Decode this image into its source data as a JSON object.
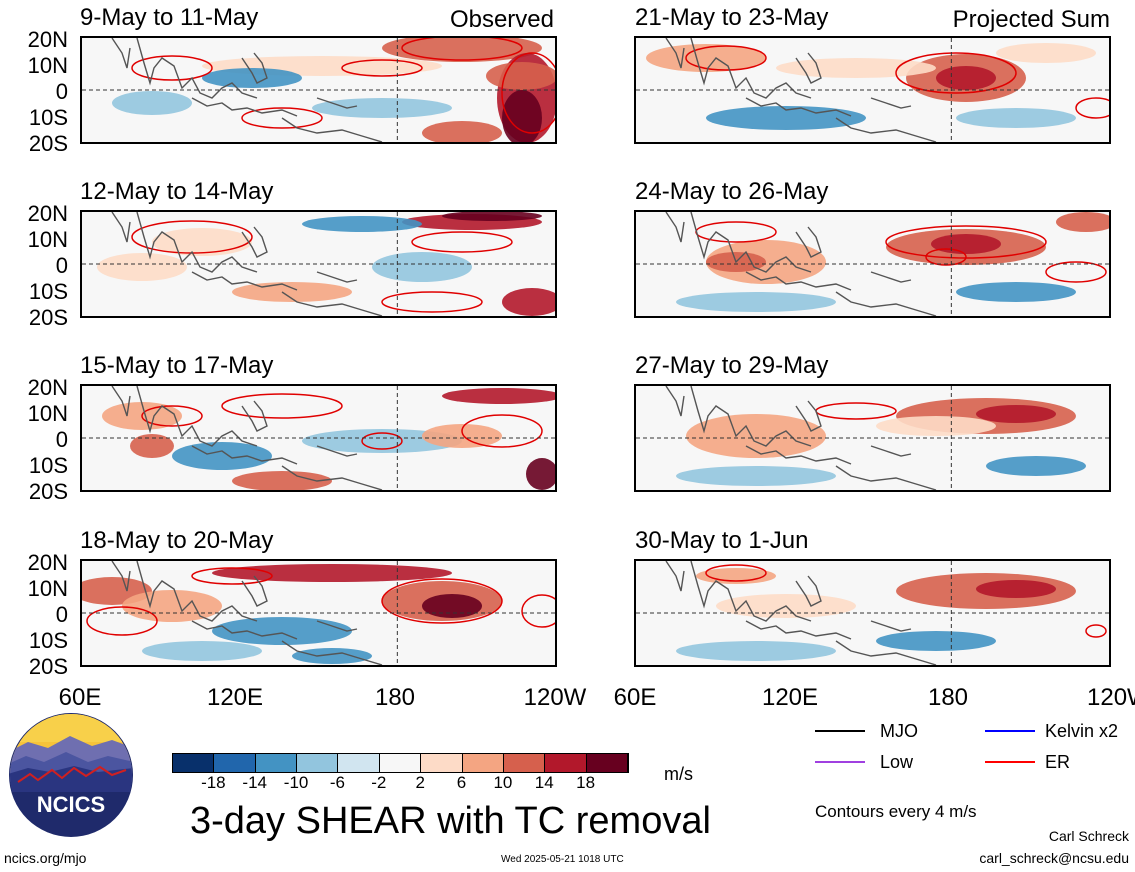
{
  "panel_tags": {
    "observed": "Observed",
    "projected": "Projected Sum"
  },
  "panels": [
    {
      "title": "9-May to 11-May"
    },
    {
      "title": "12-May to 14-May"
    },
    {
      "title": "15-May to 17-May"
    },
    {
      "title": "18-May to 20-May"
    },
    {
      "title": "21-May to 23-May"
    },
    {
      "title": "24-May to 26-May"
    },
    {
      "title": "27-May to 29-May"
    },
    {
      "title": "30-May to 1-Jun"
    }
  ],
  "lat_labels": [
    "20N",
    "10N",
    "0",
    "10S",
    "20S"
  ],
  "lon_labels": [
    "60E",
    "120E",
    "180",
    "120W"
  ],
  "colorbar": {
    "ticks": [
      "-18",
      "-14",
      "-10",
      "-6",
      "-2",
      "2",
      "6",
      "10",
      "14",
      "18"
    ],
    "colors": [
      "#08306b",
      "#2166ac",
      "#4393c3",
      "#92c5de",
      "#d1e5f0",
      "#f7f7f7",
      "#fddbc7",
      "#f4a582",
      "#d6604d",
      "#b2182b",
      "#67001f"
    ],
    "units": "m/s"
  },
  "main_title": "3-day SHEAR with TC removal",
  "legend": {
    "mjo": {
      "label": "MJO",
      "color": "#000000"
    },
    "kelvin": {
      "label": "Kelvin x2",
      "color": "#0000ff"
    },
    "low": {
      "label": "Low",
      "color": "#a040e0"
    },
    "er": {
      "label": "ER",
      "color": "#ff0000"
    },
    "contours_note": "Contours every 4 m/s"
  },
  "footer": {
    "site": "ncics.org/mjo",
    "timestamp": "Wed 2025-05-21 1018 UTC",
    "author": "Carl Schreck",
    "email": "carl_schreck@ncsu.edu"
  },
  "logo": {
    "text": "NCICS"
  }
}
